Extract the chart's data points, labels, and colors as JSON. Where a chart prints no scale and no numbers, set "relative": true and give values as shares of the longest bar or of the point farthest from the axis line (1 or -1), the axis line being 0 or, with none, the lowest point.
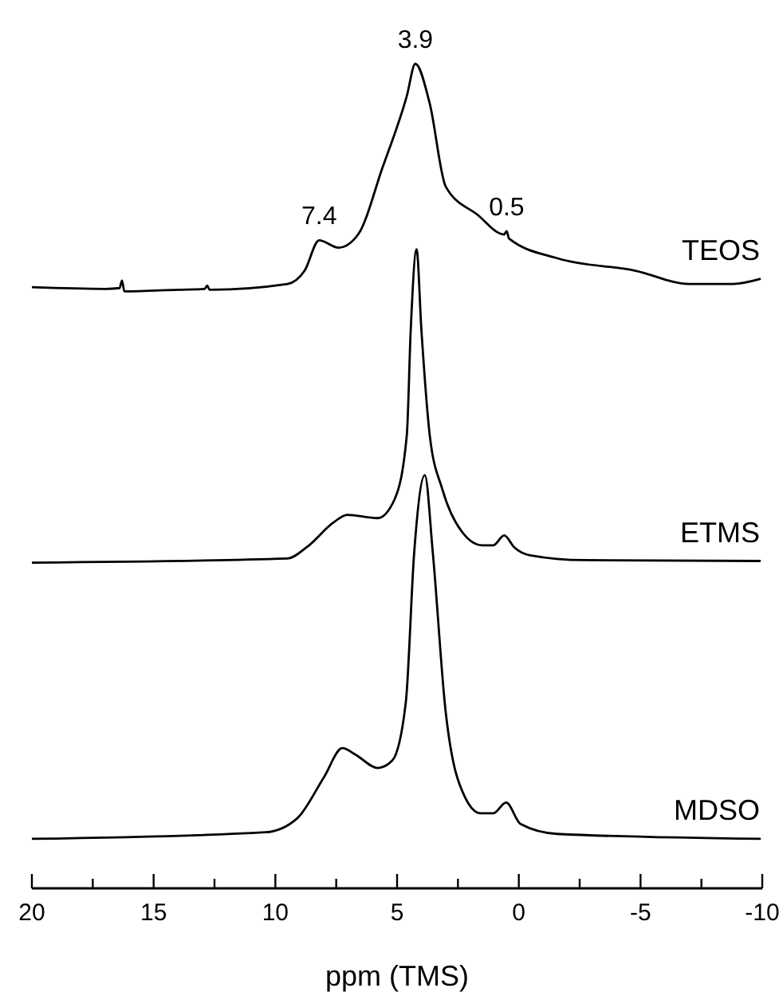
{
  "chart_data": {
    "type": "line",
    "relative": true,
    "xlabel": "ppm (TMS)",
    "xlim": [
      20,
      -10
    ],
    "xticks": [
      20,
      {
        "value": 17.5,
        "label": null
      },
      15,
      {
        "value": 12.5,
        "label": null
      },
      10,
      {
        "value": 7.5,
        "label": null
      },
      5,
      {
        "value": 2.5,
        "label": null
      },
      0,
      {
        "value": -2.5,
        "label": null
      },
      -5,
      {
        "value": -7.5,
        "label": null
      },
      -10
    ],
    "tick_labels": "x",
    "grid": false,
    "legend": false,
    "marker": "none",
    "line_style": "solid",
    "annotations": [
      {
        "text": "3.9",
        "x": 4.25,
        "y": 1.0
      },
      {
        "text": "7.4",
        "x": 8.2,
        "y": 0.786
      },
      {
        "text": "0.5",
        "x": 0.5,
        "y": 0.797
      }
    ],
    "series": [
      {
        "name": "TEOS",
        "color": "#000000",
        "x": [
          20,
          17,
          16.4,
          16.3,
          16.2,
          14,
          12.9,
          12.8,
          12.7,
          9.5,
          8.8,
          8.2,
          7.4,
          6.6,
          5.6,
          4.6,
          4.25,
          3.66,
          3.0,
          1.7,
          0.6,
          0.5,
          0.4,
          -1.6,
          -4.8,
          -7,
          -8.8,
          -9.9
        ],
        "values": [
          0.729,
          0.727,
          0.728,
          0.737,
          0.724,
          0.726,
          0.727,
          0.731,
          0.726,
          0.733,
          0.749,
          0.786,
          0.777,
          0.793,
          0.874,
          0.961,
          1.0,
          0.952,
          0.851,
          0.817,
          0.793,
          0.797,
          0.788,
          0.764,
          0.749,
          0.733,
          0.733,
          0.739
        ]
      },
      {
        "name": "ETMS",
        "color": "#000000",
        "x": [
          20,
          9.5,
          8.7,
          7.6,
          7.05,
          5.8,
          5.1,
          4.6,
          4.44,
          4.2,
          4.0,
          3.66,
          3.14,
          2.35,
          1.5,
          1.05,
          0.6,
          0.2,
          -0.46,
          -2.7,
          -9.9
        ],
        "values": [
          0.395,
          0.4,
          0.414,
          0.444,
          0.453,
          0.449,
          0.472,
          0.55,
          0.677,
          0.775,
          0.677,
          0.55,
          0.484,
          0.433,
          0.416,
          0.416,
          0.428,
          0.414,
          0.404,
          0.398,
          0.397
        ]
      },
      {
        "name": "MDSO",
        "color": "#000000",
        "x": [
          20,
          10.4,
          9.1,
          8.0,
          7.25,
          6.7,
          5.8,
          5.2,
          4.64,
          4.3,
          3.86,
          3.53,
          3.0,
          2.2,
          1.57,
          1.05,
          0.52,
          -0.07,
          -1.57,
          -9.9
        ],
        "values": [
          0.06,
          0.068,
          0.085,
          0.135,
          0.17,
          0.162,
          0.146,
          0.155,
          0.226,
          0.406,
          0.501,
          0.406,
          0.213,
          0.11,
          0.091,
          0.091,
          0.104,
          0.078,
          0.066,
          0.06
        ]
      }
    ]
  }
}
